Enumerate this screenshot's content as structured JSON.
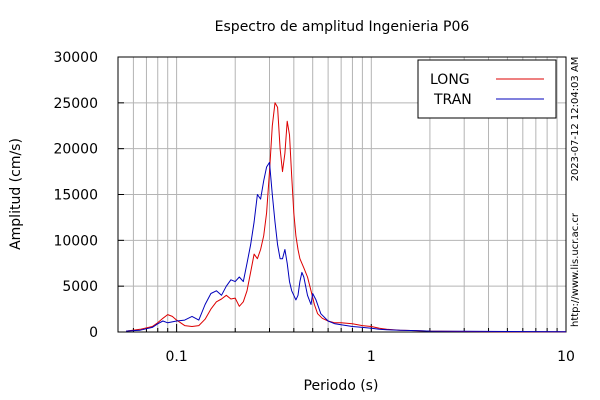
{
  "chart_data": {
    "type": "line",
    "title": "Espectro de amplitud Ingenieria P06",
    "xlabel": "Periodo (s)",
    "ylabel": "Amplitud (cm/s)",
    "xscale": "log",
    "xlim": [
      0.05,
      10
    ],
    "ylim": [
      0,
      30000
    ],
    "x_ticks": [
      {
        "value": 0.1,
        "label": "0.1"
      },
      {
        "value": 1,
        "label": "1"
      },
      {
        "value": 10,
        "label": "10"
      }
    ],
    "y_ticks": [
      {
        "value": 0,
        "label": "0"
      },
      {
        "value": 5000,
        "label": "5000"
      },
      {
        "value": 10000,
        "label": "10000"
      },
      {
        "value": 15000,
        "label": "15000"
      },
      {
        "value": 20000,
        "label": "20000"
      },
      {
        "value": 25000,
        "label": "25000"
      },
      {
        "value": 30000,
        "label": "30000"
      }
    ],
    "grid": true,
    "legend": {
      "position": "top-right"
    },
    "timestamp": "2023-07-12 12:04:03 AM",
    "source_url": "http://www.lis.ucr.ac.cr",
    "series": [
      {
        "name": "LONG",
        "color": "#dd0000",
        "x": [
          0.055,
          0.065,
          0.075,
          0.08,
          0.085,
          0.09,
          0.095,
          0.1,
          0.11,
          0.12,
          0.13,
          0.14,
          0.15,
          0.16,
          0.17,
          0.18,
          0.19,
          0.2,
          0.21,
          0.22,
          0.23,
          0.24,
          0.25,
          0.26,
          0.27,
          0.28,
          0.29,
          0.3,
          0.31,
          0.32,
          0.33,
          0.34,
          0.35,
          0.36,
          0.37,
          0.38,
          0.39,
          0.4,
          0.41,
          0.42,
          0.43,
          0.45,
          0.47,
          0.49,
          0.51,
          0.53,
          0.56,
          0.6,
          0.65,
          0.7,
          0.8,
          0.9,
          1.0,
          1.1,
          1.2,
          1.4,
          1.7,
          2.0,
          3.0,
          5.0,
          10.0
        ],
        "y": [
          100,
          300,
          600,
          1000,
          1500,
          1900,
          1700,
          1300,
          700,
          600,
          700,
          1400,
          2500,
          3300,
          3600,
          4000,
          3600,
          3700,
          2800,
          3300,
          4500,
          6500,
          8500,
          8000,
          9000,
          10500,
          13000,
          17500,
          22500,
          25000,
          24500,
          20000,
          17500,
          19500,
          23000,
          21500,
          17000,
          13000,
          10500,
          9000,
          8000,
          7000,
          6000,
          4500,
          3000,
          2000,
          1500,
          1200,
          1000,
          1000,
          900,
          700,
          600,
          400,
          300,
          200,
          150,
          100,
          50,
          30,
          20
        ]
      },
      {
        "name": "TRAN",
        "color": "#0000bb",
        "x": [
          0.055,
          0.065,
          0.075,
          0.08,
          0.085,
          0.09,
          0.1,
          0.11,
          0.12,
          0.13,
          0.14,
          0.15,
          0.16,
          0.17,
          0.18,
          0.19,
          0.2,
          0.21,
          0.22,
          0.23,
          0.24,
          0.25,
          0.26,
          0.27,
          0.28,
          0.29,
          0.3,
          0.31,
          0.32,
          0.33,
          0.34,
          0.35,
          0.36,
          0.37,
          0.38,
          0.39,
          0.4,
          0.41,
          0.42,
          0.43,
          0.44,
          0.45,
          0.47,
          0.49,
          0.5,
          0.52,
          0.55,
          0.6,
          0.65,
          0.7,
          0.8,
          0.9,
          1.0,
          1.1,
          1.2,
          1.4,
          1.7,
          2.0,
          3.0,
          5.0,
          10.0
        ],
        "y": [
          100,
          200,
          500,
          900,
          1200,
          1000,
          1200,
          1300,
          1700,
          1300,
          3000,
          4200,
          4500,
          4000,
          5000,
          5700,
          5500,
          6000,
          5500,
          7500,
          9500,
          12000,
          15000,
          14500,
          16500,
          18000,
          18500,
          15000,
          12000,
          9500,
          8000,
          8000,
          9000,
          7500,
          5500,
          4500,
          4000,
          3500,
          4000,
          5500,
          6500,
          6000,
          4000,
          3000,
          4200,
          3500,
          2000,
          1200,
          900,
          800,
          600,
          500,
          400,
          300,
          250,
          200,
          150,
          100,
          80,
          50,
          30
        ]
      }
    ]
  }
}
